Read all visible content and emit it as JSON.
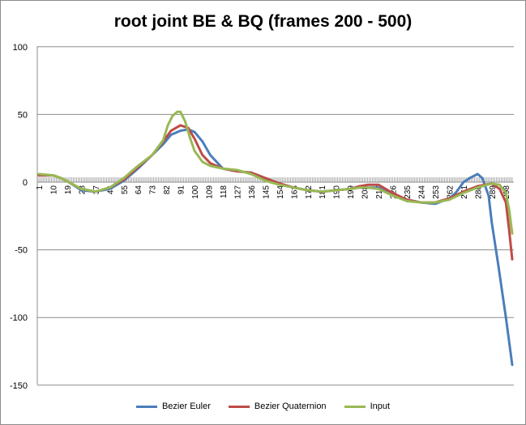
{
  "chart_data": {
    "type": "line",
    "title": "root joint BE & BQ (frames 200 - 500)",
    "xlabel": "",
    "ylabel": "",
    "ylim": [
      -150,
      100
    ],
    "yticks": [
      100,
      50,
      0,
      -50,
      -100,
      -150
    ],
    "xlim": [
      1,
      302
    ],
    "xticks": [
      1,
      10,
      19,
      28,
      37,
      46,
      55,
      64,
      73,
      82,
      91,
      100,
      109,
      118,
      127,
      136,
      145,
      154,
      163,
      172,
      181,
      190,
      199,
      208,
      217,
      226,
      235,
      244,
      253,
      262,
      271,
      280,
      289,
      298
    ],
    "legend_position": "bottom",
    "grid": "horizontal",
    "series": [
      {
        "name": "Bezier Euler",
        "color": "#4a7ebb",
        "x": [
          1,
          10,
          15,
          20,
          28,
          37,
          46,
          55,
          64,
          73,
          80,
          85,
          91,
          96,
          100,
          105,
          110,
          118,
          127,
          136,
          145,
          154,
          163,
          172,
          181,
          190,
          199,
          205,
          210,
          217,
          226,
          235,
          244,
          253,
          262,
          266,
          271,
          275,
          280,
          283,
          287,
          289,
          293,
          298,
          302
        ],
        "values": [
          5,
          5,
          3,
          0,
          -6,
          -7,
          -5,
          1,
          10,
          20,
          28,
          35,
          38,
          39,
          37,
          30,
          20,
          10,
          8,
          7,
          3,
          -1,
          -4,
          -6,
          -7,
          -6,
          -5,
          -4,
          -4,
          -4,
          -10,
          -13,
          -15,
          -16,
          -12,
          -8,
          0,
          3,
          6,
          3,
          -10,
          -30,
          -60,
          -100,
          -135
        ]
      },
      {
        "name": "Bezier Quaternion",
        "color": "#be4b48",
        "x": [
          1,
          10,
          15,
          20,
          28,
          37,
          46,
          55,
          64,
          73,
          80,
          85,
          91,
          96,
          100,
          105,
          110,
          118,
          127,
          136,
          145,
          154,
          163,
          172,
          181,
          190,
          199,
          205,
          210,
          217,
          226,
          235,
          244,
          253,
          262,
          271,
          280,
          289,
          294,
          298,
          300,
          302
        ],
        "values": [
          5,
          5,
          3,
          0,
          -5,
          -7,
          -4,
          2,
          11,
          20,
          30,
          38,
          42,
          40,
          32,
          20,
          14,
          10,
          8,
          7,
          3,
          -1,
          -4,
          -6,
          -7,
          -6,
          -5,
          -3,
          -2,
          -2,
          -8,
          -13,
          -15,
          -15,
          -12,
          -7,
          -3,
          -1,
          -5,
          -15,
          -35,
          -57
        ]
      },
      {
        "name": "Input",
        "color": "#98b954",
        "x": [
          1,
          10,
          15,
          20,
          28,
          37,
          46,
          55,
          64,
          73,
          80,
          83,
          86,
          89,
          91,
          94,
          97,
          100,
          105,
          110,
          118,
          127,
          136,
          145,
          154,
          163,
          172,
          181,
          190,
          199,
          205,
          210,
          217,
          226,
          235,
          244,
          253,
          262,
          271,
          280,
          289,
          294,
          298,
          300,
          302
        ],
        "values": [
          6,
          5,
          3,
          0,
          -5,
          -7,
          -4,
          3,
          12,
          20,
          31,
          42,
          49,
          52,
          52,
          45,
          33,
          23,
          15,
          12,
          10,
          9,
          6,
          1,
          -2,
          -4,
          -6,
          -7,
          -6,
          -5,
          -4,
          -4,
          -5,
          -10,
          -14,
          -15,
          -15,
          -13,
          -8,
          -4,
          -1,
          -2,
          -8,
          -20,
          -38
        ]
      }
    ]
  }
}
